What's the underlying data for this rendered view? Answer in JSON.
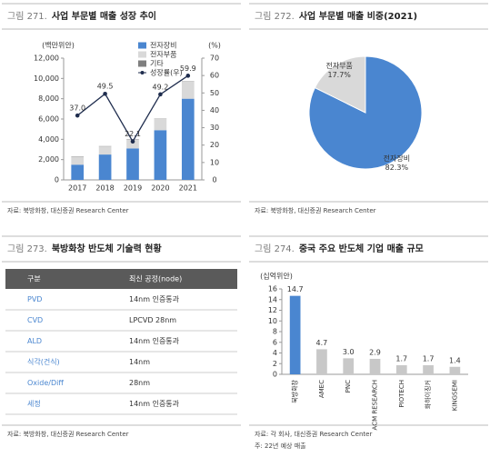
{
  "chart_data": [
    {
      "type": "bar",
      "figure": "그림 271.",
      "title": "사업 부문별 매출 성장 추이",
      "ylabel": "(백만위안)",
      "y2label": "(%)",
      "categories": [
        "2017",
        "2018",
        "2019",
        "2020",
        "2021"
      ],
      "series": [
        {
          "name": "전자장비",
          "color": "#4a86d0",
          "values": [
            1500,
            2500,
            3100,
            4900,
            8000
          ]
        },
        {
          "name": "전자부품",
          "color": "#d9d9d9",
          "values": [
            800,
            800,
            900,
            1100,
            1700
          ]
        },
        {
          "name": "기타",
          "color": "#7f7f7f",
          "values": [
            30,
            30,
            30,
            30,
            30
          ]
        },
        {
          "name": "성장률(우)",
          "color": "#1f2d4e",
          "type": "line",
          "axis": "y2",
          "values": [
            37,
            49.5,
            22.1,
            49.2,
            59.9
          ],
          "value_labels": [
            "37.0",
            "49.5",
            "22.1",
            "49.2",
            "59.9"
          ]
        }
      ],
      "stacked": true,
      "ylim": [
        0,
        12000
      ],
      "yticks": [
        0,
        {
          "value": 2000,
          "label": "2,000"
        },
        {
          "value": 4000,
          "label": "4,000"
        },
        {
          "value": 6000,
          "label": "6,000"
        },
        {
          "value": 8000,
          "label": "8,000"
        },
        {
          "value": 10000,
          "label": "10,000"
        },
        {
          "value": 12000,
          "label": "12,000"
        }
      ],
      "y2lim": [
        0,
        70
      ],
      "y2ticks": [
        0,
        10,
        20,
        30,
        40,
        50,
        60,
        70
      ],
      "source": "자료: 북방화창, 대신증권 Research Center"
    },
    {
      "type": "pie",
      "figure": "그림 272.",
      "title": "사업 부문별 매출 비중(2021)",
      "categories": [
        "전자장비",
        "전자부품"
      ],
      "values": [
        82.3,
        17.7
      ],
      "value_labels": [
        "82.3%",
        "17.7%"
      ],
      "colors": [
        "#4a86d0",
        "#d9d9d9"
      ],
      "source": "자료: 북방화창, 대신증권 Research Center"
    },
    {
      "type": "bar",
      "figure": "그림 274.",
      "title": "중국 주요 반도체 기업 매출 규모",
      "ylabel": "(십억위안)",
      "categories": [
        "북방화창",
        "AMEC",
        "PNC",
        "ACM RESEARCH",
        "PIOTECH",
        "화하이징커",
        "KINGSEMI"
      ],
      "values": [
        14.7,
        4.7,
        3,
        2.9,
        1.7,
        1.7,
        1.4
      ],
      "value_labels": [
        "14.7",
        "4.7",
        "3.0",
        "2.9",
        "1.7",
        "1.7",
        "1.4"
      ],
      "colors": [
        "#4a86d0",
        "#c8c8c8",
        "#c8c8c8",
        "#c8c8c8",
        "#c8c8c8",
        "#c8c8c8",
        "#c8c8c8"
      ],
      "ylim": [
        0,
        16
      ],
      "yticks": [
        0,
        2,
        4,
        6,
        8,
        10,
        12,
        14,
        16
      ],
      "source": "자료: 각 회사, 대신증권 Research Center",
      "note": "주: 22년 예상 매출"
    }
  ],
  "table": {
    "figure": "그림 273.",
    "title": "북방화창 반도체 기술력 현황",
    "header": [
      "구분",
      "최신 공정(node)"
    ],
    "rows": [
      [
        "PVD",
        "14nm 인증통과"
      ],
      [
        "CVD",
        "LPCVD 28nm"
      ],
      [
        "ALD",
        "14nm 인증통과"
      ],
      [
        "식각(건식)",
        "14nm"
      ],
      [
        "Oxide/Diff",
        "28nm"
      ],
      [
        "세정",
        "14nm 인증통과"
      ]
    ],
    "source": "자료: 북방화창, 대신증권 Research Center"
  }
}
